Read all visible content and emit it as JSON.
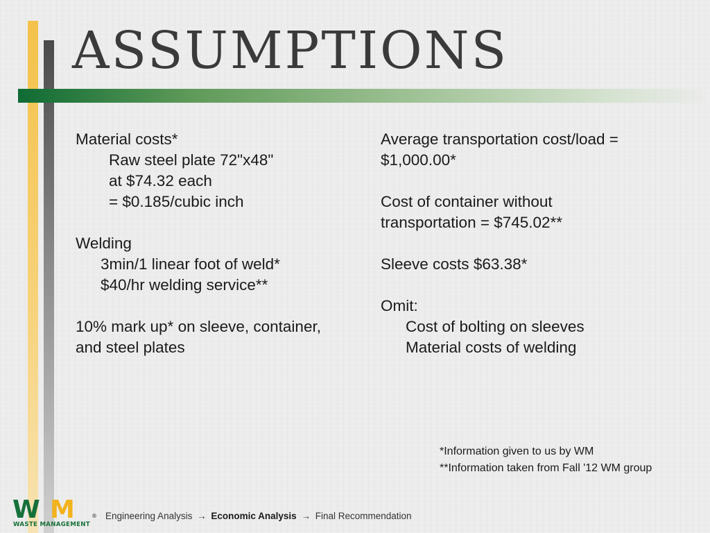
{
  "slide": {
    "title": "ASSUMPTIONS",
    "left_column": [
      {
        "text": "Material costs*",
        "indent": 0
      },
      {
        "text": "Raw steel plate 72\"x48\"",
        "indent": 48
      },
      {
        "text": "at $74.32 each",
        "indent": 48
      },
      {
        "text": "= $0.185/cubic inch",
        "indent": 48
      },
      {
        "text": "",
        "indent": 0
      },
      {
        "text": "Welding",
        "indent": 0
      },
      {
        "text": "3min/1 linear foot of weld*",
        "indent": 36
      },
      {
        "text": "$40/hr welding service**",
        "indent": 36
      },
      {
        "text": "",
        "indent": 0
      },
      {
        "text": "10% mark up* on sleeve, container,",
        "indent": 0
      },
      {
        "text": "and steel plates",
        "indent": 0
      }
    ],
    "right_column": [
      {
        "text": "Average transportation cost/load =",
        "indent": 0
      },
      {
        "text": "$1,000.00*",
        "indent": 0
      },
      {
        "text": "",
        "indent": 0
      },
      {
        "text": "Cost of container without",
        "indent": 0
      },
      {
        "text": "transportation = $745.02**",
        "indent": 0
      },
      {
        "text": "",
        "indent": 0
      },
      {
        "text": "Sleeve costs $63.38*",
        "indent": 0
      },
      {
        "text": "",
        "indent": 0
      },
      {
        "text": "Omit:",
        "indent": 0
      },
      {
        "text": "Cost of bolting on sleeves",
        "indent": 36
      },
      {
        "text": "Material costs of welding",
        "indent": 36
      }
    ],
    "footnotes": [
      "*Information given to us by WM",
      "**Information taken from Fall '12 WM group"
    ]
  },
  "logo": {
    "letters": "WM",
    "registered": "®",
    "subtitle": "WASTE MANAGEMENT"
  },
  "breadcrumb": {
    "step1": "Engineering Analysis",
    "step2": "Economic Analysis",
    "step3": "Final Recommendation",
    "separator": "→",
    "current_step": "step2"
  },
  "colors": {
    "accent_green": "#0f6b34",
    "accent_yellow": "#f4c24a",
    "accent_gray": "#4a4a4a",
    "background": "#ececec"
  }
}
